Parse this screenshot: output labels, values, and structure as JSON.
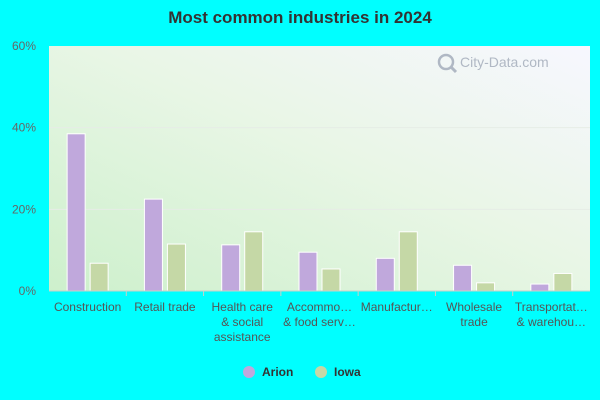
{
  "chart_data": {
    "type": "bar",
    "title": "Most common industries in 2024",
    "categories": [
      [
        "Construction"
      ],
      [
        "Retail trade"
      ],
      [
        "Health care",
        "& social",
        "assistance"
      ],
      [
        "Accommo…",
        "& food serv…"
      ],
      [
        "Manufactur…"
      ],
      [
        "Wholesale",
        "trade"
      ],
      [
        "Transportat…",
        "& warehou…"
      ]
    ],
    "series": [
      {
        "name": "Arion",
        "color": "#c0a8dc",
        "values": [
          38.5,
          22.5,
          11.3,
          9.5,
          8.0,
          6.3,
          1.7
        ]
      },
      {
        "name": "Iowa",
        "color": "#c5d8a6",
        "values": [
          6.8,
          11.5,
          14.5,
          5.4,
          14.5,
          2.0,
          4.3
        ]
      }
    ],
    "yticks": [
      "0%",
      "20%",
      "40%",
      "60%"
    ],
    "ylim": [
      0,
      60
    ],
    "legend": "bottom-center",
    "watermark": "City-Data.com"
  }
}
